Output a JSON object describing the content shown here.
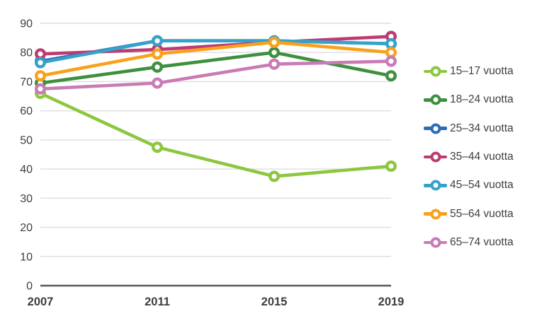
{
  "chart_data": {
    "type": "line",
    "categories": [
      "2007",
      "2011",
      "2015",
      "2019"
    ],
    "series": [
      {
        "name": "15–17 vuotta",
        "color": "#8dc63f",
        "values": [
          66,
          47.5,
          37.5,
          41
        ]
      },
      {
        "name": "18–24 vuotta",
        "color": "#3e8f3e",
        "values": [
          69.5,
          75,
          80,
          72
        ]
      },
      {
        "name": "25–34 vuotta",
        "color": "#2b6cb8",
        "values": [
          77,
          84,
          84,
          83
        ]
      },
      {
        "name": "35–44 vuotta",
        "color": "#be3a73",
        "values": [
          79.5,
          81,
          83.5,
          85.5
        ]
      },
      {
        "name": "45–54 vuotta",
        "color": "#35a3c9",
        "values": [
          76.5,
          84,
          84,
          83
        ]
      },
      {
        "name": "55–64 vuotta",
        "color": "#f9a11b",
        "values": [
          72,
          79.5,
          83.5,
          80
        ]
      },
      {
        "name": "65–74 vuotta",
        "color": "#c97bb5",
        "values": [
          67.5,
          69.5,
          76,
          77
        ]
      }
    ],
    "title": "",
    "xlabel": "",
    "ylabel": "",
    "ylim": [
      0,
      90
    ],
    "yticks": [
      0,
      10,
      20,
      30,
      40,
      50,
      60,
      70,
      80,
      90
    ],
    "grid": "horizontal",
    "legend_position": "right"
  },
  "style": {
    "grid_color": "#dddee1",
    "axis_line_color": "#58585a",
    "tick_label_color": "#3e3e40",
    "background": "#ffffff"
  }
}
